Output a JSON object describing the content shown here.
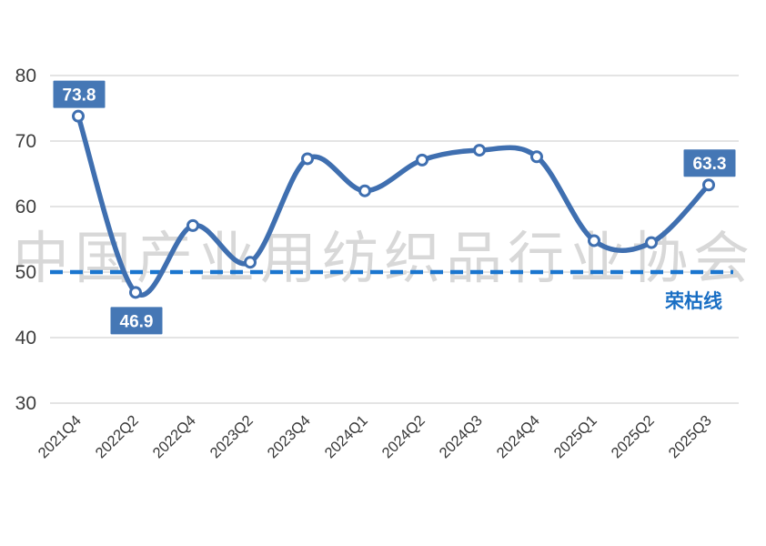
{
  "chart_data": {
    "type": "line",
    "title": "",
    "xlabel": "",
    "ylabel": "",
    "categories": [
      "2021Q4",
      "2022Q2",
      "2022Q4",
      "2023Q2",
      "2023Q4",
      "2024Q1",
      "2024Q2",
      "2024Q3",
      "2024Q4",
      "2025Q1",
      "2025Q2",
      "2025Q3"
    ],
    "values": [
      73.8,
      46.9,
      57.1,
      51.5,
      67.3,
      62.4,
      67.1,
      68.6,
      67.6,
      54.8,
      54.5,
      63.3
    ],
    "labeled_points": [
      {
        "index": 0,
        "label": "73.8",
        "position": "above"
      },
      {
        "index": 1,
        "label": "46.9",
        "position": "below"
      },
      {
        "index": 11,
        "label": "63.3",
        "position": "above"
      }
    ],
    "ylim": [
      30,
      80
    ],
    "yticks": [
      30,
      40,
      50,
      60,
      70,
      80
    ],
    "grid": true,
    "legend": "none",
    "reference_line": {
      "value": 50,
      "label": "荣枯线",
      "style": "dashed"
    },
    "colors": {
      "line": "#3f6fb0",
      "marker_fill": "#ffffff",
      "label_box": "#4577b5",
      "label_text": "#ffffff",
      "reference_line": "#1b76cf",
      "reference_label": "#1a6fc4",
      "gridline": "#dbdbdb",
      "ytick_text": "#3d3d3d",
      "xtick_text": "#383838"
    }
  },
  "watermark": {
    "text": "中国产业用纺织品行业协会"
  }
}
